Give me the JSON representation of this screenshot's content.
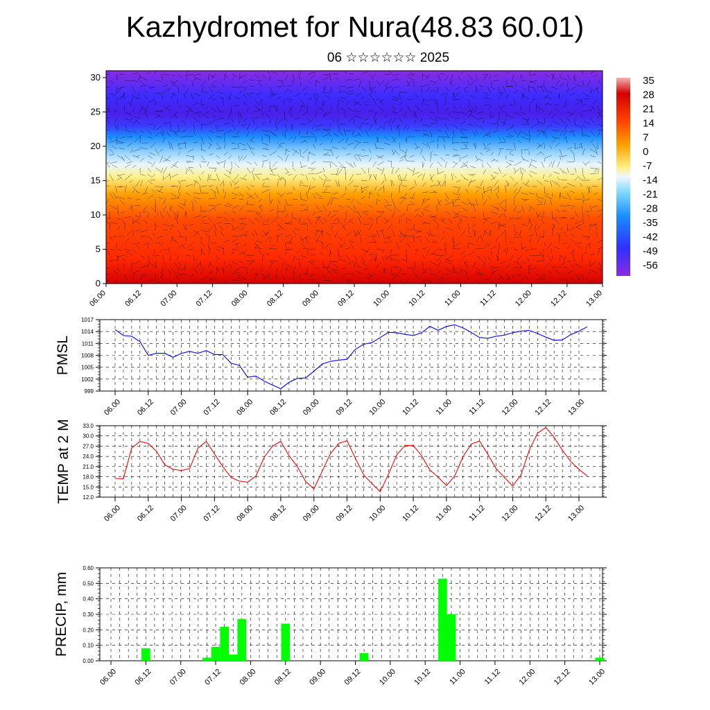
{
  "page": {
    "title": "Kazhydromet for Nura(48.83 60.01)",
    "subtitle": "06 ☆☆☆☆☆☆ 2025"
  },
  "colors": {
    "pmsl_line": "#0000ff",
    "temp_line": "#ff0000",
    "precip_bar": "#00ff00",
    "colorbar_stops": [
      "#f4b3b3",
      "#d40000",
      "#ff4400",
      "#ffa200",
      "#ffee80",
      "#7fd8ff",
      "#1a8cff",
      "#3030ff",
      "#8a2be2"
    ]
  },
  "chart_data": [
    {
      "id": "cross_section",
      "type": "heatmap",
      "description_tag": "temperature-height cross-section with wind barbs",
      "x_ticks": [
        "06.00",
        "06.12",
        "07.00",
        "07.12",
        "08.00",
        "08.12",
        "09.00",
        "09.12",
        "10.00",
        "10.12",
        "11.00",
        "11.12",
        "12.00",
        "12.12",
        "13.00"
      ],
      "y_ticks": [
        0,
        5,
        10,
        15,
        20,
        25,
        30
      ],
      "ylim": [
        0,
        31
      ],
      "colorbar_labels": [
        "35",
        "28",
        "21",
        "14",
        "7",
        "0",
        "-7",
        "-14",
        "-21",
        "-28",
        "-35",
        "-42",
        "-49",
        "-56"
      ]
    },
    {
      "id": "pmsl",
      "type": "line",
      "ylabel": "PMSL",
      "ylim": [
        999,
        1017
      ],
      "y_ticks": [
        "1017",
        "1014",
        "1011",
        "1008",
        "1005",
        "1002",
        "999"
      ],
      "x_ticks": [
        "06.00",
        "06.12",
        "07.00",
        "07.12",
        "08.00",
        "08.12",
        "09.00",
        "09.12",
        "10.00",
        "10.12",
        "11.00",
        "11.12",
        "12.00",
        "12.12",
        "13.00"
      ],
      "x_step_hours": 3,
      "values": [
        1014.5,
        1013,
        1012.8,
        1011.5,
        1008,
        1008.5,
        1008.5,
        1007.5,
        1008.5,
        1009,
        1008.5,
        1009.2,
        1008.2,
        1008.2,
        1006,
        1005.5,
        1002.5,
        1002.8,
        1001.5,
        1000.5,
        999.6,
        1001.2,
        1002.2,
        1002.3,
        1004,
        1005.8,
        1006.5,
        1006.8,
        1007,
        1009.5,
        1010.8,
        1011.2,
        1012.5,
        1013.8,
        1013.7,
        1013.3,
        1013,
        1013.7,
        1015.3,
        1014.3,
        1015.3,
        1015.7,
        1014.9,
        1013.8,
        1012.5,
        1012.3,
        1012.8,
        1013.1,
        1013.7,
        1014.1,
        1014.3,
        1013.5,
        1012.6,
        1011.8,
        1011.9,
        1013.2,
        1014.1,
        1015.2
      ]
    },
    {
      "id": "temp",
      "type": "line",
      "ylabel": "TEMP at 2 M",
      "ylim": [
        12,
        33
      ],
      "y_ticks": [
        "33.0",
        "30.0",
        "27.0",
        "24.0",
        "21.0",
        "18.0",
        "15.0",
        "12.0"
      ],
      "x_ticks": [
        "06.00",
        "06.12",
        "07.00",
        "07.12",
        "08.00",
        "08.12",
        "09.00",
        "09.12",
        "10.00",
        "10.12",
        "11.00",
        "11.12",
        "12.00",
        "12.12",
        "13.00"
      ],
      "x_step_hours": 3,
      "values": [
        17.5,
        17.4,
        26.4,
        28.4,
        27.8,
        25.5,
        21.5,
        20.2,
        19.8,
        20.4,
        26.4,
        28.4,
        24.7,
        21,
        17.8,
        16.7,
        16.4,
        18.2,
        23.7,
        27,
        28.4,
        24.2,
        21,
        16.6,
        14.4,
        19.6,
        24.8,
        27.8,
        28.6,
        23.5,
        18.6,
        16,
        13.6,
        18.7,
        24.4,
        27.2,
        27.2,
        24.2,
        20,
        17.9,
        15.4,
        18.2,
        23.9,
        27.6,
        28.5,
        24.6,
        20.4,
        17.8,
        15.3,
        18.5,
        25.8,
        30.8,
        32.5,
        29.6,
        25.8,
        22.5,
        20.2,
        18.2
      ]
    },
    {
      "id": "precip",
      "type": "bar",
      "ylabel": "PRECIP, mm",
      "ylim": [
        0,
        0.6
      ],
      "y_ticks": [
        "0.60",
        "0.50",
        "0.40",
        "0.30",
        "0.20",
        "0.10",
        "0.00"
      ],
      "x_ticks": [
        "06.00",
        "06.12",
        "07.00",
        "07.12",
        "08.00",
        "08.12",
        "09.00",
        "09.12",
        "10.00",
        "10.12",
        "11.00",
        "11.12",
        "12.00",
        "12.12",
        "13.00"
      ],
      "x_step_hours": 3,
      "values": [
        0,
        0,
        0,
        0,
        0.08,
        0,
        0,
        0,
        0,
        0,
        0,
        0.02,
        0.09,
        0.22,
        0.04,
        0.27,
        0,
        0,
        0,
        0,
        0.24,
        0,
        0,
        0,
        0,
        0,
        0,
        0,
        0,
        0.05,
        0,
        0,
        0,
        0,
        0,
        0,
        0,
        0,
        0.53,
        0.3,
        0,
        0,
        0,
        0,
        0,
        0,
        0,
        0,
        0,
        0,
        0,
        0,
        0,
        0,
        0,
        0,
        0.02,
        0
      ]
    }
  ]
}
